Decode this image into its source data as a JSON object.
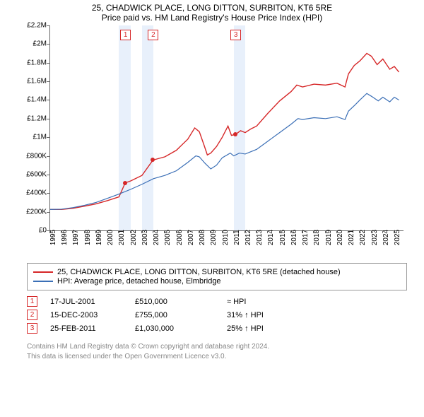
{
  "title_line1": "25, CHADWICK PLACE, LONG DITTON, SURBITON, KT6 5RE",
  "title_line2": "Price paid vs. HM Land Registry's House Price Index (HPI)",
  "chart": {
    "type": "line",
    "xlim": [
      1995,
      2025.8
    ],
    "ylim": [
      0,
      2200000
    ],
    "ytick_step": 200000,
    "yticklabels": [
      "£0",
      "£200K",
      "£400K",
      "£600K",
      "£800K",
      "£1M",
      "£1.2M",
      "£1.4M",
      "£1.6M",
      "£1.8M",
      "£2M",
      "£2.2M"
    ],
    "xticks": [
      1995,
      1996,
      1997,
      1998,
      1999,
      2000,
      2001,
      2002,
      2003,
      2004,
      2005,
      2006,
      2007,
      2008,
      2009,
      2010,
      2011,
      2012,
      2013,
      2014,
      2015,
      2016,
      2017,
      2018,
      2019,
      2020,
      2021,
      2022,
      2023,
      2024,
      2025
    ],
    "band_years": [
      [
        2001,
        2002
      ],
      [
        2003,
        2004
      ],
      [
        2011,
        2012
      ]
    ],
    "series": [
      {
        "name": "property",
        "color": "#d62728",
        "width": 1.4,
        "data": [
          [
            1995,
            225000
          ],
          [
            1996,
            225000
          ],
          [
            1997,
            238000
          ],
          [
            1998,
            260000
          ],
          [
            1999,
            285000
          ],
          [
            2000,
            320000
          ],
          [
            2001,
            360000
          ],
          [
            2001.54,
            510000
          ],
          [
            2002,
            530000
          ],
          [
            2003,
            590000
          ],
          [
            2003.96,
            755000
          ],
          [
            2004.4,
            770000
          ],
          [
            2005,
            790000
          ],
          [
            2006,
            860000
          ],
          [
            2007,
            980000
          ],
          [
            2007.6,
            1100000
          ],
          [
            2008,
            1060000
          ],
          [
            2008.4,
            920000
          ],
          [
            2008.7,
            810000
          ],
          [
            2009,
            830000
          ],
          [
            2009.5,
            900000
          ],
          [
            2010,
            1000000
          ],
          [
            2010.5,
            1120000
          ],
          [
            2010.8,
            1020000
          ],
          [
            2011.15,
            1030000
          ],
          [
            2011.6,
            1070000
          ],
          [
            2012,
            1050000
          ],
          [
            2012.5,
            1090000
          ],
          [
            2013,
            1120000
          ],
          [
            2014,
            1260000
          ],
          [
            2015,
            1390000
          ],
          [
            2016,
            1490000
          ],
          [
            2016.5,
            1560000
          ],
          [
            2017,
            1540000
          ],
          [
            2018,
            1570000
          ],
          [
            2019,
            1560000
          ],
          [
            2020,
            1580000
          ],
          [
            2020.7,
            1540000
          ],
          [
            2021,
            1680000
          ],
          [
            2021.5,
            1770000
          ],
          [
            2022,
            1820000
          ],
          [
            2022.6,
            1900000
          ],
          [
            2023,
            1870000
          ],
          [
            2023.5,
            1780000
          ],
          [
            2024,
            1840000
          ],
          [
            2024.6,
            1730000
          ],
          [
            2025,
            1760000
          ],
          [
            2025.4,
            1700000
          ]
        ]
      },
      {
        "name": "hpi",
        "color": "#3b6fb6",
        "width": 1.2,
        "data": [
          [
            1995,
            225000
          ],
          [
            1996,
            228000
          ],
          [
            1997,
            245000
          ],
          [
            1998,
            270000
          ],
          [
            1999,
            300000
          ],
          [
            2000,
            345000
          ],
          [
            2001,
            390000
          ],
          [
            2002,
            440000
          ],
          [
            2003,
            495000
          ],
          [
            2004,
            555000
          ],
          [
            2005,
            590000
          ],
          [
            2006,
            640000
          ],
          [
            2007,
            730000
          ],
          [
            2007.7,
            800000
          ],
          [
            2008,
            790000
          ],
          [
            2008.5,
            720000
          ],
          [
            2009,
            660000
          ],
          [
            2009.5,
            700000
          ],
          [
            2010,
            780000
          ],
          [
            2010.7,
            830000
          ],
          [
            2011,
            800000
          ],
          [
            2011.5,
            830000
          ],
          [
            2012,
            820000
          ],
          [
            2012.6,
            850000
          ],
          [
            2013,
            870000
          ],
          [
            2014,
            960000
          ],
          [
            2015,
            1050000
          ],
          [
            2016,
            1140000
          ],
          [
            2016.6,
            1200000
          ],
          [
            2017,
            1190000
          ],
          [
            2018,
            1210000
          ],
          [
            2019,
            1200000
          ],
          [
            2020,
            1220000
          ],
          [
            2020.7,
            1190000
          ],
          [
            2021,
            1280000
          ],
          [
            2021.6,
            1350000
          ],
          [
            2022,
            1400000
          ],
          [
            2022.6,
            1470000
          ],
          [
            2023,
            1440000
          ],
          [
            2023.6,
            1390000
          ],
          [
            2024,
            1430000
          ],
          [
            2024.6,
            1380000
          ],
          [
            2025,
            1430000
          ],
          [
            2025.4,
            1400000
          ]
        ]
      }
    ],
    "markers": [
      {
        "n": "1",
        "x": 2001.54,
        "color": "#d62728"
      },
      {
        "n": "2",
        "x": 2003.96,
        "color": "#d62728"
      },
      {
        "n": "3",
        "x": 2011.15,
        "color": "#d62728"
      }
    ],
    "sale_points": [
      {
        "x": 2001.54,
        "y": 510000,
        "color": "#d62728"
      },
      {
        "x": 2003.96,
        "y": 755000,
        "color": "#d62728"
      },
      {
        "x": 2011.15,
        "y": 1030000,
        "color": "#d62728"
      }
    ]
  },
  "legend": [
    {
      "color": "#d62728",
      "label": "25, CHADWICK PLACE, LONG DITTON, SURBITON, KT6 5RE (detached house)"
    },
    {
      "color": "#3b6fb6",
      "label": "HPI: Average price, detached house, Elmbridge"
    }
  ],
  "transactions": [
    {
      "n": "1",
      "color": "#d62728",
      "date": "17-JUL-2001",
      "price": "£510,000",
      "pct": "≈ HPI"
    },
    {
      "n": "2",
      "color": "#d62728",
      "date": "15-DEC-2003",
      "price": "£755,000",
      "pct": "31% ↑ HPI"
    },
    {
      "n": "3",
      "color": "#d62728",
      "date": "25-FEB-2011",
      "price": "£1,030,000",
      "pct": "25% ↑ HPI"
    }
  ],
  "footer_line1": "Contains HM Land Registry data © Crown copyright and database right 2024.",
  "footer_line2": "This data is licensed under the Open Government Licence v3.0."
}
